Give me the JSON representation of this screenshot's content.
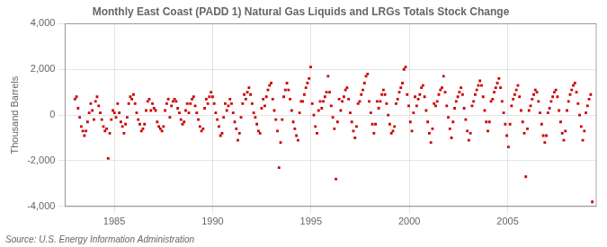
{
  "chart_data": {
    "type": "scatter",
    "title": "Monthly East Coast (PADD 1) Natural Gas Liquids and LRGs Totals Stock Change",
    "ylabel": "Thousand Barrels",
    "source": "Source: U.S. Energy Information Administration",
    "color": "#CC0000",
    "marker": "square",
    "grid": true,
    "xlim": [
      1982.5,
      2009.5
    ],
    "xticks": [
      1985,
      1990,
      1995,
      2000,
      2005
    ],
    "ylim": [
      -4000,
      4000
    ],
    "yticks": [
      {
        "value": -4000,
        "label": "-4,000"
      },
      {
        "value": -2000,
        "label": "-2,000"
      },
      0,
      {
        "value": 2000,
        "label": "2,000"
      },
      {
        "value": 4000,
        "label": "4,000"
      }
    ],
    "x": [
      1983,
      1983.08,
      1983.161,
      1983.241,
      1983.322,
      1983.402,
      1983.483,
      1983.563,
      1983.643,
      1983.724,
      1983.804,
      1983.885,
      1983.965,
      1984.046,
      1984.126,
      1984.206,
      1984.287,
      1984.367,
      1984.448,
      1984.528,
      1984.609,
      1984.689,
      1984.769,
      1984.85,
      1984.93,
      1985.011,
      1985.091,
      1985.172,
      1985.252,
      1985.332,
      1985.413,
      1985.493,
      1985.574,
      1985.654,
      1985.735,
      1985.815,
      1985.895,
      1985.976,
      1986.056,
      1986.137,
      1986.217,
      1986.298,
      1986.378,
      1986.458,
      1986.539,
      1986.619,
      1986.7,
      1986.78,
      1986.861,
      1986.941,
      1987.021,
      1987.102,
      1987.182,
      1987.263,
      1987.343,
      1987.424,
      1987.504,
      1987.584,
      1987.665,
      1987.745,
      1987.826,
      1987.906,
      1987.987,
      1988.067,
      1988.147,
      1988.228,
      1988.308,
      1988.389,
      1988.469,
      1988.55,
      1988.63,
      1988.71,
      1988.791,
      1988.871,
      1988.952,
      1989.032,
      1989.113,
      1989.193,
      1989.273,
      1989.354,
      1989.434,
      1989.515,
      1989.595,
      1989.676,
      1989.756,
      1989.836,
      1989.917,
      1989.997,
      1990.078,
      1990.158,
      1990.239,
      1990.319,
      1990.399,
      1990.48,
      1990.56,
      1990.641,
      1990.721,
      1990.802,
      1990.882,
      1990.962,
      1991.043,
      1991.123,
      1991.204,
      1991.284,
      1991.365,
      1991.445,
      1991.525,
      1991.606,
      1991.686,
      1991.767,
      1991.847,
      1991.928,
      1992.008,
      1992.088,
      1992.169,
      1992.249,
      1992.33,
      1992.41,
      1992.491,
      1992.571,
      1992.651,
      1992.732,
      1992.812,
      1992.893,
      1992.973,
      1993.054,
      1993.134,
      1993.214,
      1993.295,
      1993.375,
      1993.456,
      1993.536,
      1993.617,
      1993.697,
      1993.777,
      1993.858,
      1993.938,
      1994.019,
      1994.099,
      1994.18,
      1994.26,
      1994.34,
      1994.421,
      1994.501,
      1994.582,
      1994.662,
      1994.743,
      1994.823,
      1994.903,
      1994.984,
      1995.064,
      1995.145,
      1995.225,
      1995.306,
      1995.386,
      1995.466,
      1995.547,
      1995.627,
      1995.708,
      1995.788,
      1995.869,
      1995.949,
      1996.029,
      1996.11,
      1996.19,
      1996.271,
      1996.351,
      1996.431,
      1996.512,
      1996.592,
      1996.673,
      1996.753,
      1996.834,
      1996.914,
      1996.994,
      1997.075,
      1997.155,
      1997.236,
      1997.316,
      1997.397,
      1997.477,
      1997.557,
      1997.638,
      1997.718,
      1997.799,
      1997.879,
      1997.96,
      1998.04,
      1998.12,
      1998.201,
      1998.281,
      1998.362,
      1998.442,
      1998.523,
      1998.603,
      1998.683,
      1998.764,
      1998.844,
      1998.925,
      1999.005,
      1999.086,
      1999.166,
      1999.246,
      1999.327,
      1999.407,
      1999.488,
      1999.568,
      1999.649,
      1999.729,
      1999.809,
      1999.89,
      1999.97,
      2000.051,
      2000.131,
      2000.212,
      2000.292,
      2000.372,
      2000.453,
      2000.533,
      2000.614,
      2000.694,
      2000.775,
      2000.855,
      2000.935,
      2001.016,
      2001.096,
      2001.177,
      2001.257,
      2001.338,
      2001.418,
      2001.498,
      2001.579,
      2001.659,
      2001.74,
      2001.82,
      2001.901,
      2001.981,
      2002.061,
      2002.142,
      2002.222,
      2002.303,
      2002.383,
      2002.464,
      2002.544,
      2002.624,
      2002.705,
      2002.785,
      2002.866,
      2002.946,
      2003.027,
      2003.107,
      2003.187,
      2003.268,
      2003.348,
      2003.429,
      2003.509,
      2003.59,
      2003.67,
      2003.75,
      2003.831,
      2003.911,
      2003.992,
      2004.072,
      2004.153,
      2004.233,
      2004.313,
      2004.394,
      2004.474,
      2004.555,
      2004.635,
      2004.716,
      2004.796,
      2004.876,
      2004.957,
      2005.037,
      2005.118,
      2005.198,
      2005.279,
      2005.359,
      2005.439,
      2005.52,
      2005.6,
      2005.681,
      2005.761,
      2005.842,
      2005.922,
      2006.002,
      2006.083,
      2006.163,
      2006.244,
      2006.324,
      2006.405,
      2006.485,
      2006.565,
      2006.646,
      2006.726,
      2006.807,
      2006.887,
      2006.968,
      2007.048,
      2007.128,
      2007.209,
      2007.289,
      2007.37,
      2007.45,
      2007.531,
      2007.611,
      2007.691,
      2007.772,
      2007.852,
      2007.933,
      2008.013,
      2008.094,
      2008.174,
      2008.254,
      2008.335,
      2008.415,
      2008.496,
      2008.576,
      2008.657,
      2008.737,
      2008.817,
      2008.898,
      2008.978,
      2009.059,
      2009.139,
      2009.22,
      2009.3
    ],
    "values": [
      700,
      800,
      300,
      -100,
      -500,
      -700,
      -900,
      -700,
      -300,
      100,
      500,
      200,
      -200,
      600,
      800,
      400,
      100,
      -200,
      -500,
      -700,
      -600,
      -1900,
      -800,
      -200,
      200,
      100,
      -100,
      500,
      100,
      -300,
      -500,
      -800,
      -400,
      -100,
      500,
      800,
      700,
      900,
      500,
      100,
      -200,
      -400,
      -700,
      -600,
      -400,
      200,
      600,
      700,
      200,
      500,
      300,
      200,
      -300,
      -500,
      -600,
      -700,
      -500,
      200,
      500,
      700,
      -100,
      400,
      600,
      700,
      600,
      300,
      100,
      -200,
      -400,
      -300,
      200,
      500,
      100,
      500,
      700,
      800,
      400,
      100,
      -200,
      -500,
      -700,
      -600,
      300,
      700,
      500,
      800,
      1000,
      800,
      500,
      100,
      -200,
      -500,
      -900,
      -800,
      -100,
      500,
      200,
      400,
      700,
      500,
      100,
      -300,
      -600,
      -1100,
      -800,
      -100,
      500,
      900,
      700,
      1000,
      1200,
      900,
      500,
      100,
      -100,
      -400,
      -700,
      -800,
      300,
      700,
      400,
      800,
      1100,
      1300,
      1400,
      700,
      200,
      -200,
      -700,
      -2300,
      -1200,
      -200,
      800,
      1100,
      1400,
      1100,
      700,
      200,
      -300,
      -600,
      -900,
      -1100,
      100,
      600,
      600,
      900,
      1200,
      1400,
      1600,
      2100,
      500,
      0,
      -500,
      -800,
      200,
      600,
      300,
      600,
      800,
      1000,
      1700,
      1000,
      400,
      -100,
      -600,
      -2800,
      -300,
      700,
      200,
      600,
      800,
      1100,
      1200,
      700,
      100,
      -300,
      -700,
      -1000,
      -500,
      500,
      600,
      900,
      1100,
      1400,
      1700,
      1800,
      600,
      100,
      -400,
      -800,
      -400,
      600,
      300,
      600,
      900,
      1100,
      900,
      500,
      0,
      -400,
      -800,
      -700,
      -500,
      500,
      700,
      1000,
      1200,
      1400,
      2000,
      2100,
      900,
      400,
      -300,
      -700,
      100,
      800,
      400,
      700,
      900,
      1200,
      1300,
      800,
      200,
      -300,
      -800,
      -1200,
      -600,
      500,
      400,
      600,
      900,
      1100,
      1200,
      1700,
      1000,
      400,
      -100,
      -600,
      -1000,
      -300,
      300,
      600,
      800,
      1000,
      1200,
      900,
      300,
      -200,
      -700,
      -1100,
      -800,
      400,
      600,
      900,
      1100,
      1300,
      1500,
      1300,
      800,
      200,
      -300,
      -700,
      -300,
      600,
      700,
      1000,
      1200,
      1400,
      1600,
      1200,
      600,
      100,
      -400,
      -900,
      -1400,
      -400,
      400,
      700,
      900,
      1100,
      1300,
      800,
      200,
      -300,
      -800,
      -2700,
      -600,
      200,
      400,
      700,
      900,
      1100,
      1000,
      600,
      100,
      -400,
      -900,
      -1200,
      -900,
      100,
      300,
      600,
      800,
      1000,
      1100,
      800,
      200,
      -300,
      -800,
      -1100,
      -700,
      200,
      600,
      900,
      1100,
      1300,
      1400,
      1000,
      500,
      0,
      -500,
      -1100,
      -700,
      100,
      400,
      700,
      900,
      -3800
    ]
  }
}
